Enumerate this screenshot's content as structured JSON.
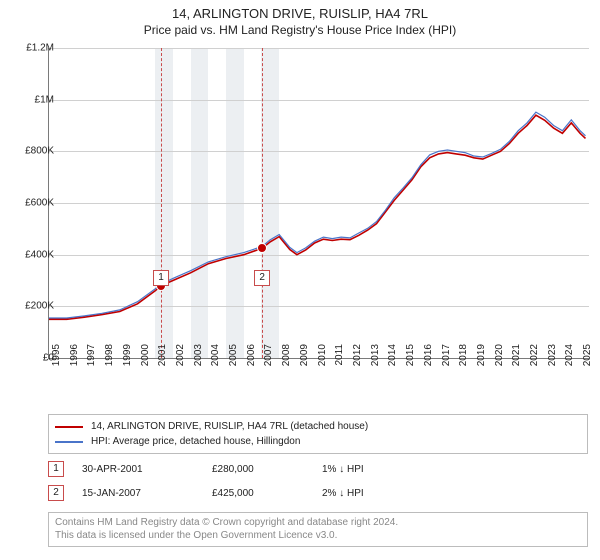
{
  "title": "14, ARLINGTON DRIVE, RUISLIP, HA4 7RL",
  "subtitle": "Price paid vs. HM Land Registry's House Price Index (HPI)",
  "chart": {
    "type": "line",
    "background_color": "#ffffff",
    "grid_color": "#d0d0d0",
    "band_color": "#eceff2",
    "axis_color": "#7a7a7a",
    "label_fontsize": 10,
    "x_range": [
      1995,
      2025.5
    ],
    "y_range": [
      0,
      1200000
    ],
    "y_ticks": [
      {
        "v": 0,
        "label": "£0"
      },
      {
        "v": 200000,
        "label": "£200K"
      },
      {
        "v": 400000,
        "label": "£400K"
      },
      {
        "v": 600000,
        "label": "£600K"
      },
      {
        "v": 800000,
        "label": "£800K"
      },
      {
        "v": 1000000,
        "label": "£1M"
      },
      {
        "v": 1200000,
        "label": "£1.2M"
      }
    ],
    "x_ticks": [
      1995,
      1996,
      1997,
      1998,
      1999,
      2000,
      2001,
      2002,
      2003,
      2004,
      2005,
      2006,
      2007,
      2008,
      2009,
      2010,
      2011,
      2012,
      2013,
      2014,
      2015,
      2016,
      2017,
      2018,
      2019,
      2020,
      2021,
      2022,
      2023,
      2024,
      2025
    ],
    "bands": [
      [
        2001,
        2002
      ],
      [
        2003,
        2004
      ],
      [
        2005,
        2006
      ],
      [
        2007,
        2008
      ]
    ],
    "callout_line_color": "#c84c4c",
    "series": [
      {
        "name": "property",
        "legend": "14, ARLINGTON DRIVE, RUISLIP, HA4 7RL (detached house)",
        "color": "#c00000",
        "width": 1.6,
        "data": [
          [
            1995,
            150000
          ],
          [
            1996,
            150000
          ],
          [
            1997,
            158000
          ],
          [
            1998,
            168000
          ],
          [
            1999,
            180000
          ],
          [
            2000,
            210000
          ],
          [
            2001,
            260000
          ],
          [
            2001.33,
            280000
          ],
          [
            2002,
            300000
          ],
          [
            2003,
            330000
          ],
          [
            2004,
            365000
          ],
          [
            2005,
            385000
          ],
          [
            2006,
            400000
          ],
          [
            2007.04,
            425000
          ],
          [
            2007.5,
            450000
          ],
          [
            2008,
            470000
          ],
          [
            2008.6,
            420000
          ],
          [
            2009,
            400000
          ],
          [
            2009.5,
            418000
          ],
          [
            2010,
            445000
          ],
          [
            2010.5,
            460000
          ],
          [
            2011,
            455000
          ],
          [
            2011.5,
            460000
          ],
          [
            2012,
            458000
          ],
          [
            2012.5,
            475000
          ],
          [
            2013,
            495000
          ],
          [
            2013.5,
            520000
          ],
          [
            2014,
            565000
          ],
          [
            2014.5,
            610000
          ],
          [
            2015,
            650000
          ],
          [
            2015.5,
            690000
          ],
          [
            2016,
            740000
          ],
          [
            2016.5,
            775000
          ],
          [
            2017,
            790000
          ],
          [
            2017.5,
            795000
          ],
          [
            2018,
            790000
          ],
          [
            2018.5,
            785000
          ],
          [
            2019,
            775000
          ],
          [
            2019.5,
            770000
          ],
          [
            2020,
            785000
          ],
          [
            2020.5,
            800000
          ],
          [
            2021,
            830000
          ],
          [
            2021.5,
            870000
          ],
          [
            2022,
            900000
          ],
          [
            2022.5,
            940000
          ],
          [
            2023,
            920000
          ],
          [
            2023.5,
            890000
          ],
          [
            2024,
            870000
          ],
          [
            2024.5,
            910000
          ],
          [
            2025,
            870000
          ],
          [
            2025.3,
            850000
          ]
        ]
      },
      {
        "name": "hpi",
        "legend": "HPI: Average price, detached house, Hillingdon",
        "color": "#4a74c9",
        "width": 1.2,
        "data": [
          [
            1995,
            155000
          ],
          [
            1996,
            155000
          ],
          [
            1997,
            163000
          ],
          [
            1998,
            173000
          ],
          [
            1999,
            186000
          ],
          [
            2000,
            218000
          ],
          [
            2001,
            268000
          ],
          [
            2001.33,
            286000
          ],
          [
            2002,
            308000
          ],
          [
            2003,
            338000
          ],
          [
            2004,
            372000
          ],
          [
            2005,
            392000
          ],
          [
            2006,
            408000
          ],
          [
            2007.04,
            432000
          ],
          [
            2007.5,
            458000
          ],
          [
            2008,
            478000
          ],
          [
            2008.6,
            428000
          ],
          [
            2009,
            408000
          ],
          [
            2009.5,
            426000
          ],
          [
            2010,
            452000
          ],
          [
            2010.5,
            468000
          ],
          [
            2011,
            462000
          ],
          [
            2011.5,
            468000
          ],
          [
            2012,
            465000
          ],
          [
            2012.5,
            484000
          ],
          [
            2013,
            502000
          ],
          [
            2013.5,
            528000
          ],
          [
            2014,
            572000
          ],
          [
            2014.5,
            620000
          ],
          [
            2015,
            658000
          ],
          [
            2015.5,
            698000
          ],
          [
            2016,
            748000
          ],
          [
            2016.5,
            786000
          ],
          [
            2017,
            800000
          ],
          [
            2017.5,
            805000
          ],
          [
            2018,
            800000
          ],
          [
            2018.5,
            795000
          ],
          [
            2019,
            782000
          ],
          [
            2019.5,
            778000
          ],
          [
            2020,
            792000
          ],
          [
            2020.5,
            808000
          ],
          [
            2021,
            838000
          ],
          [
            2021.5,
            880000
          ],
          [
            2022,
            910000
          ],
          [
            2022.5,
            952000
          ],
          [
            2023,
            932000
          ],
          [
            2023.5,
            900000
          ],
          [
            2024,
            880000
          ],
          [
            2024.5,
            922000
          ],
          [
            2025,
            880000
          ],
          [
            2025.3,
            860000
          ]
        ]
      }
    ],
    "sales_markers": [
      {
        "id": "1",
        "x": 2001.33,
        "y": 280000
      },
      {
        "id": "2",
        "x": 2007.04,
        "y": 425000
      }
    ]
  },
  "legend_title_fontsize": 10,
  "sales": [
    {
      "id": "1",
      "date": "30-APR-2001",
      "price": "£280,000",
      "hpi_diff": "1% ↓ HPI"
    },
    {
      "id": "2",
      "date": "15-JAN-2007",
      "price": "£425,000",
      "hpi_diff": "2% ↓ HPI"
    }
  ],
  "license": {
    "line1": "Contains HM Land Registry data © Crown copyright and database right 2024.",
    "line2": "This data is licensed under the Open Government Licence v3.0."
  }
}
